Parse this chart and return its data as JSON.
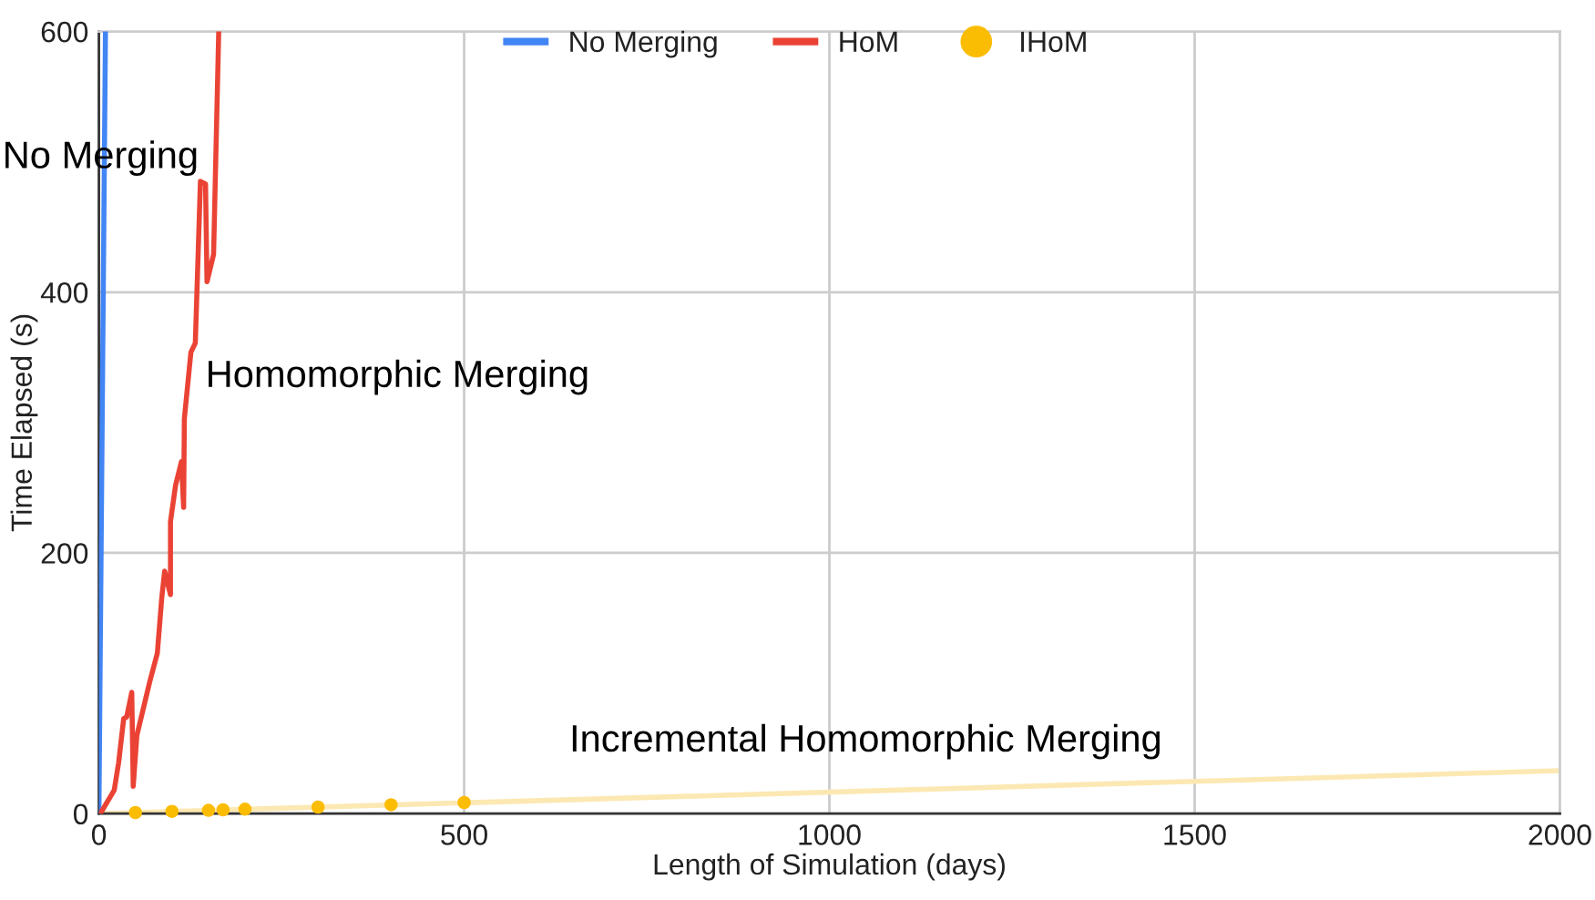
{
  "chart_data": {
    "type": "line",
    "xlabel": "Length of Simulation (days)",
    "ylabel": "Time Elapsed (s)",
    "xlim": [
      0,
      2000
    ],
    "xticks": [
      0,
      500,
      1000,
      1500,
      2000
    ],
    "ylim": [
      0,
      600
    ],
    "yticks": [
      0,
      200,
      400,
      600
    ],
    "grid": true,
    "legend": "top",
    "series": [
      {
        "name": "No Merging",
        "color": "#4285f4",
        "x": [
          0,
          9
        ],
        "values": [
          0,
          600
        ]
      },
      {
        "name": "HoM",
        "color": "#ea4335",
        "x": [
          2,
          21,
          27,
          34,
          38,
          45,
          47,
          52,
          70,
          80,
          86,
          90,
          98,
          98,
          105,
          113,
          116,
          117,
          126,
          132,
          139,
          146,
          148,
          157,
          164
        ],
        "values": [
          0,
          18,
          39,
          73,
          74,
          93,
          21,
          60,
          102,
          123,
          165,
          186,
          168,
          224,
          252,
          270,
          235,
          303,
          354,
          361,
          485,
          483,
          408,
          429,
          599
        ]
      },
      {
        "color": "#fce8b2",
        "x": [
          0,
          2000
        ],
        "values": [
          0,
          33
        ]
      },
      {
        "name": "IHoM",
        "color": "#fbbc04",
        "type": "scatter",
        "marker": "circle",
        "x": [
          50,
          100,
          150,
          170,
          200,
          300,
          400,
          500
        ],
        "values": [
          0.8,
          1.7,
          2.5,
          2.9,
          3.4,
          5,
          6.8,
          8.5
        ]
      }
    ],
    "annotations": [
      "No Merging",
      "Homomorphic Merging",
      "Incremental Homomorphic Merging"
    ]
  }
}
